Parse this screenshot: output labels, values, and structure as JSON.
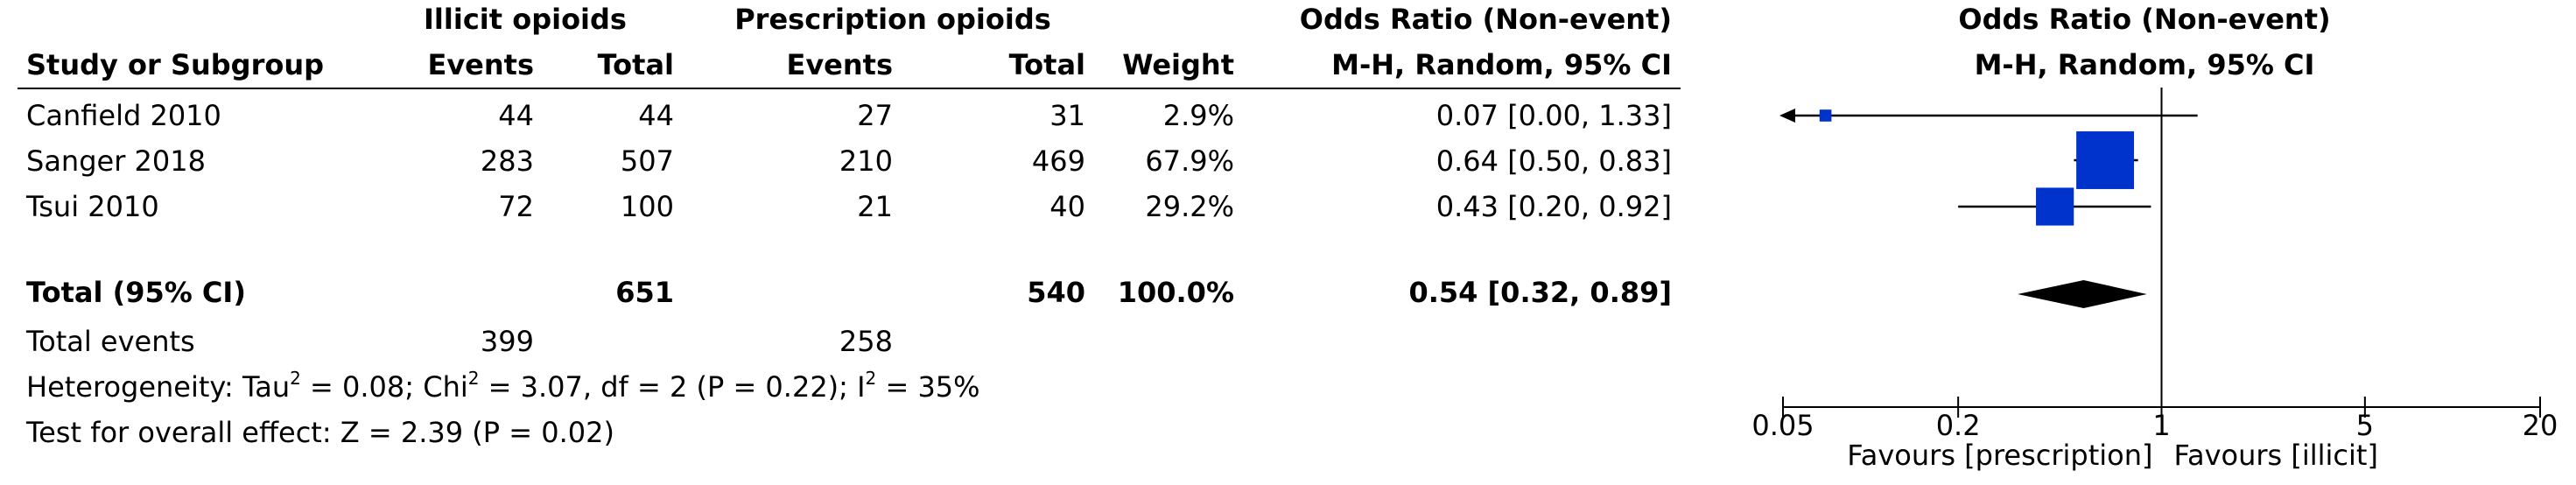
{
  "headers": {
    "group1": "Illicit opioids",
    "group2": "Prescription opioids",
    "or_table": "Odds Ratio (Non-event)",
    "or_table_method": "M-H, Random, 95% CI",
    "or_plot": "Odds Ratio (Non-event)",
    "or_plot_method": "M-H, Random, 95% CI",
    "study": "Study or Subgroup",
    "events1": "Events",
    "total1": "Total",
    "events2": "Events",
    "total2": "Total",
    "weight": "Weight"
  },
  "studies": [
    {
      "name": "Canfield 2010",
      "events1": "44",
      "total1": "44",
      "events2": "27",
      "total2": "31",
      "weight": "2.9%",
      "ci_text": "0.07 [0.00, 1.33]"
    },
    {
      "name": "Sanger 2018",
      "events1": "283",
      "total1": "507",
      "events2": "210",
      "total2": "469",
      "weight": "67.9%",
      "ci_text": "0.64 [0.50, 0.83]"
    },
    {
      "name": "Tsui 2010",
      "events1": "72",
      "total1": "100",
      "events2": "21",
      "total2": "40",
      "weight": "29.2%",
      "ci_text": "0.43 [0.20, 0.92]"
    }
  ],
  "total": {
    "label": "Total (95% CI)",
    "total1": "651",
    "total2": "540",
    "weight": "100.0%",
    "ci_text": "0.54 [0.32, 0.89]"
  },
  "total_events": {
    "label": "Total events",
    "events1": "399",
    "events2": "258"
  },
  "heterogeneity": {
    "prefix": "Heterogeneity: Tau",
    "mid1": " = 0.08; Chi",
    "mid2": " = 3.07, df = 2 (P = 0.22); I",
    "suffix": " = 35%",
    "sup": "2"
  },
  "overall_effect": "Test for overall effect: Z = 2.39 (P = 0.02)",
  "axis": {
    "ticks": [
      "0.05",
      "0.2",
      "1",
      "5",
      "20"
    ],
    "favours_left": "Favours [prescription]",
    "favours_right": "Favours [illicit]"
  },
  "colors": {
    "square": "#0033cc",
    "line": "#000000",
    "diamond": "#000000"
  },
  "chart_data": {
    "type": "forest",
    "scale": "log",
    "xlim": [
      0.05,
      20
    ],
    "null_line": 1,
    "studies": [
      {
        "name": "Canfield 2010",
        "or": 0.07,
        "lower": 0.0,
        "upper": 1.33,
        "weight": 2.9,
        "lower_arrow": true
      },
      {
        "name": "Sanger 2018",
        "or": 0.64,
        "lower": 0.5,
        "upper": 0.83,
        "weight": 67.9
      },
      {
        "name": "Tsui 2010",
        "or": 0.43,
        "lower": 0.2,
        "upper": 0.92,
        "weight": 29.2
      }
    ],
    "pooled": {
      "or": 0.54,
      "lower": 0.32,
      "upper": 0.89
    }
  }
}
